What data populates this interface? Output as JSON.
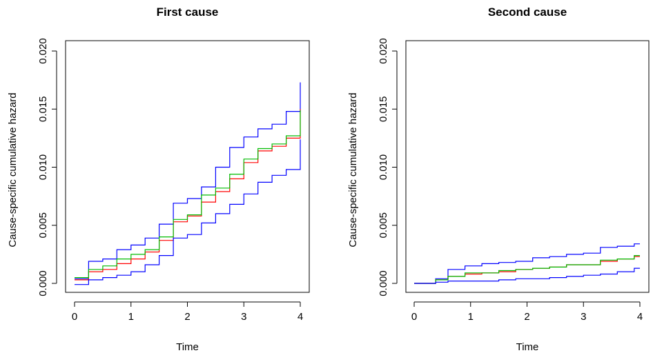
{
  "chart_data": [
    {
      "type": "line",
      "title": "First cause",
      "xlabel": "Time",
      "ylabel": "Cause-specific cumulative hazard",
      "xlim": [
        0,
        4
      ],
      "ylim": [
        0,
        0.02
      ],
      "xticks": [
        "0",
        "1",
        "2",
        "3",
        "4"
      ],
      "yticks": [
        "0.000",
        "0.005",
        "0.010",
        "0.015",
        "0.020"
      ],
      "grid": false,
      "legend": "none",
      "series": [
        {
          "color": "#0000ff",
          "x": [
            0,
            0.25,
            0.5,
            0.75,
            1.0,
            1.25,
            1.5,
            1.75,
            2.0,
            2.25,
            2.5,
            2.75,
            3.0,
            3.25,
            3.5,
            3.75,
            4.0
          ],
          "values": [
            0.0004,
            0.0019,
            0.0021,
            0.0029,
            0.0033,
            0.0039,
            0.0051,
            0.0069,
            0.0073,
            0.0083,
            0.01,
            0.0117,
            0.0126,
            0.0133,
            0.0137,
            0.0148,
            0.0173
          ]
        },
        {
          "color": "#ff0000",
          "x": [
            0,
            0.25,
            0.5,
            0.75,
            1.0,
            1.25,
            1.5,
            1.75,
            2.0,
            2.25,
            2.5,
            2.75,
            3.0,
            3.25,
            3.5,
            3.75,
            4.0
          ],
          "values": [
            0.0003,
            0.001,
            0.0012,
            0.0017,
            0.0021,
            0.0027,
            0.0037,
            0.0053,
            0.0058,
            0.007,
            0.0079,
            0.009,
            0.0104,
            0.0114,
            0.0118,
            0.0125,
            0.015
          ]
        },
        {
          "color": "#00bb00",
          "x": [
            0,
            0.25,
            0.5,
            0.75,
            1.0,
            1.25,
            1.5,
            1.75,
            2.0,
            2.25,
            2.5,
            2.75,
            3.0,
            3.25,
            3.5,
            3.75,
            4.0
          ],
          "values": [
            0.0005,
            0.0012,
            0.0015,
            0.0021,
            0.0025,
            0.0029,
            0.004,
            0.0055,
            0.0059,
            0.0076,
            0.0082,
            0.0094,
            0.0107,
            0.0116,
            0.012,
            0.0127,
            0.0149
          ]
        },
        {
          "color": "#0000ff",
          "x": [
            0,
            0.25,
            0.5,
            0.75,
            1.0,
            1.25,
            1.5,
            1.75,
            2.0,
            2.25,
            2.5,
            2.75,
            3.0,
            3.25,
            3.5,
            3.75,
            4.0
          ],
          "values": [
            -0.0001,
            0.0003,
            0.0005,
            0.0007,
            0.001,
            0.0016,
            0.0024,
            0.0039,
            0.0042,
            0.0052,
            0.006,
            0.0068,
            0.0077,
            0.0087,
            0.0093,
            0.0098,
            0.0124
          ]
        }
      ]
    },
    {
      "type": "line",
      "title": "Second cause",
      "xlabel": "Time",
      "ylabel": "Cause-specific cumulative hazard",
      "xlim": [
        0,
        4
      ],
      "ylim": [
        0,
        0.02
      ],
      "xticks": [
        "0",
        "1",
        "2",
        "3",
        "4"
      ],
      "yticks": [
        "0.000",
        "0.005",
        "0.010",
        "0.015",
        "0.020"
      ],
      "grid": false,
      "legend": "none",
      "series": [
        {
          "color": "#0000ff",
          "x": [
            0,
            0.38,
            0.38,
            0.6,
            0.9,
            1.2,
            1.5,
            1.8,
            2.1,
            2.4,
            2.7,
            3.0,
            3.3,
            3.6,
            3.9,
            4.0
          ],
          "values": [
            0,
            0,
            0.0004,
            0.0012,
            0.0015,
            0.0017,
            0.0018,
            0.0019,
            0.0022,
            0.0023,
            0.0025,
            0.0026,
            0.0031,
            0.0032,
            0.0034,
            0.0034
          ]
        },
        {
          "color": "#ff0000",
          "x": [
            0,
            0.38,
            0.38,
            0.6,
            0.9,
            1.2,
            1.5,
            1.8,
            2.1,
            2.4,
            2.7,
            3.0,
            3.3,
            3.6,
            3.9,
            4.0
          ],
          "values": [
            0,
            0,
            0.0003,
            0.0006,
            0.0008,
            0.0009,
            0.001,
            0.0012,
            0.0013,
            0.0014,
            0.0016,
            0.0016,
            0.0019,
            0.0021,
            0.0023,
            0.0023
          ]
        },
        {
          "color": "#00bb00",
          "x": [
            0,
            0.38,
            0.38,
            0.6,
            0.9,
            1.2,
            1.5,
            1.8,
            2.1,
            2.4,
            2.7,
            3.0,
            3.3,
            3.6,
            3.9,
            4.0
          ],
          "values": [
            0,
            0,
            0.0003,
            0.0006,
            0.0009,
            0.0009,
            0.0011,
            0.0012,
            0.0013,
            0.0014,
            0.0016,
            0.0016,
            0.002,
            0.0021,
            0.0024,
            0.0024
          ]
        },
        {
          "color": "#0000ff",
          "x": [
            0,
            0.38,
            0.38,
            0.6,
            0.9,
            1.2,
            1.5,
            1.8,
            2.1,
            2.4,
            2.7,
            3.0,
            3.3,
            3.6,
            3.9,
            4.0
          ],
          "values": [
            0,
            0,
            0.0001,
            0.0002,
            0.0002,
            0.0002,
            0.0003,
            0.0004,
            0.0004,
            0.0005,
            0.0006,
            0.0007,
            0.0008,
            0.001,
            0.0013,
            0.0013
          ]
        }
      ]
    }
  ]
}
